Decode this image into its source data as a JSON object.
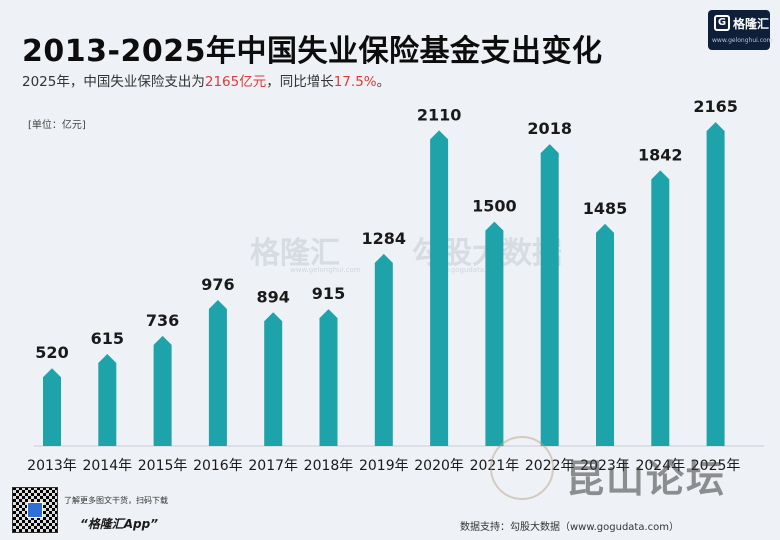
{
  "title": "2013-2025年中国失业保险基金支出变化",
  "subtitle": {
    "prefix": "2025年，中国失业保险支出为",
    "value": "2165亿元",
    "middle": "，同比增长",
    "growth": "17.5%",
    "suffix": "。"
  },
  "unit_label": "[单位：亿元]",
  "logo": {
    "name": "格隆汇",
    "url": "www.gelonghui.com"
  },
  "watermarks": {
    "gelonghui": "格隆汇",
    "gelonghui_url": "www.gelonghui.com",
    "gogudata": "勾股大数据",
    "gogudata_url": "www.gogudata.com",
    "forum": "昆山论坛"
  },
  "footer": {
    "tagline": "了解更多图文干货，扫码下载",
    "app": "“格隆汇App”",
    "source": "数据支持：勾股大数据（www.gogudata.com）"
  },
  "colors": {
    "bar": "#1fa3ab",
    "bar_top": "#168f97",
    "highlight": "#e03a3a",
    "gridline": "#c9ced6"
  },
  "chart_data": {
    "type": "bar",
    "title": "2013-2025年中国失业保险基金支出变化",
    "ylabel": "[单位：亿元]",
    "xlabel": "",
    "categories": [
      "2013年",
      "2014年",
      "2015年",
      "2016年",
      "2017年",
      "2018年",
      "2019年",
      "2020年",
      "2021年",
      "2022年",
      "2023年",
      "2024年",
      "2025年"
    ],
    "values": [
      520,
      615,
      736,
      976,
      894,
      915,
      1284,
      2110,
      1500,
      2018,
      1485,
      1842,
      2165
    ],
    "ylim": [
      0,
      2400
    ],
    "grid": false,
    "legend": "none"
  }
}
